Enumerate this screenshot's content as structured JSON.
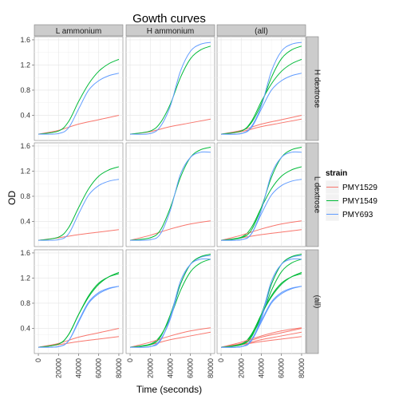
{
  "chart_data": {
    "type": "line",
    "title": "Gowth curves",
    "xlabel": "Time (seconds)",
    "ylabel": "OD",
    "xlim": [
      -4000,
      84000
    ],
    "ylim": [
      0,
      1.65
    ],
    "xticks": [
      0,
      20000,
      40000,
      60000,
      80000
    ],
    "yticks": [
      0.4,
      0.8,
      1.2,
      1.6
    ],
    "grid": true,
    "col_facets": [
      "L ammonium",
      "H ammonium",
      "(all)"
    ],
    "row_facets": [
      "H dextrose",
      "L dextrose",
      "(all)"
    ],
    "legend": {
      "title": "strain",
      "position": "right",
      "entries": [
        {
          "name": "PMY1529",
          "color": "#F8766D"
        },
        {
          "name": "PMY1549",
          "color": "#00BA38"
        },
        {
          "name": "PMY693",
          "color": "#619CFF"
        }
      ]
    },
    "facets": [
      {
        "row": "H dextrose",
        "col": "L ammonium",
        "curves": [
          {
            "strain": "PMY1529",
            "x": [
              0,
              20000,
              40000,
              60000,
              80000
            ],
            "y": [
              0.1,
              0.16,
              0.26,
              0.33,
              0.4
            ]
          },
          {
            "strain": "PMY1549",
            "x": [
              0,
              20000,
              30000,
              40000,
              50000,
              60000,
              70000,
              80000
            ],
            "y": [
              0.1,
              0.15,
              0.3,
              0.62,
              0.9,
              1.1,
              1.22,
              1.29
            ]
          },
          {
            "strain": "PMY693",
            "x": [
              0,
              20000,
              30000,
              40000,
              50000,
              60000,
              70000,
              80000
            ],
            "y": [
              0.1,
              0.11,
              0.2,
              0.5,
              0.8,
              0.95,
              1.03,
              1.07
            ]
          }
        ]
      },
      {
        "row": "H dextrose",
        "col": "H ammonium",
        "curves": [
          {
            "strain": "PMY1529",
            "x": [
              0,
              20000,
              40000,
              60000,
              80000
            ],
            "y": [
              0.1,
              0.14,
              0.22,
              0.28,
              0.34
            ]
          },
          {
            "strain": "PMY1549",
            "x": [
              0,
              20000,
              30000,
              40000,
              50000,
              60000,
              70000,
              80000
            ],
            "y": [
              0.1,
              0.15,
              0.28,
              0.58,
              1.0,
              1.3,
              1.44,
              1.5
            ]
          },
          {
            "strain": "PMY693",
            "x": [
              0,
              20000,
              30000,
              40000,
              50000,
              60000,
              70000,
              80000
            ],
            "y": [
              0.1,
              0.11,
              0.22,
              0.55,
              1.1,
              1.42,
              1.53,
              1.56
            ]
          }
        ]
      },
      {
        "row": "L dextrose",
        "col": "L ammonium",
        "curves": [
          {
            "strain": "PMY1529",
            "x": [
              0,
              20000,
              40000,
              60000,
              80000
            ],
            "y": [
              0.1,
              0.14,
              0.19,
              0.23,
              0.27
            ]
          },
          {
            "strain": "PMY1549",
            "x": [
              0,
              20000,
              30000,
              40000,
              50000,
              60000,
              70000,
              80000
            ],
            "y": [
              0.1,
              0.15,
              0.3,
              0.62,
              0.92,
              1.12,
              1.22,
              1.27
            ]
          },
          {
            "strain": "PMY693",
            "x": [
              0,
              20000,
              30000,
              40000,
              50000,
              60000,
              70000,
              80000
            ],
            "y": [
              0.1,
              0.11,
              0.2,
              0.52,
              0.82,
              0.97,
              1.04,
              1.07
            ]
          }
        ]
      },
      {
        "row": "L dextrose",
        "col": "H ammonium",
        "curves": [
          {
            "strain": "PMY1529",
            "x": [
              0,
              20000,
              40000,
              60000,
              80000
            ],
            "y": [
              0.1,
              0.18,
              0.28,
              0.36,
              0.41
            ]
          },
          {
            "strain": "PMY1549",
            "x": [
              0,
              20000,
              30000,
              40000,
              50000,
              60000,
              70000,
              80000
            ],
            "y": [
              0.1,
              0.14,
              0.26,
              0.62,
              1.1,
              1.42,
              1.54,
              1.58
            ]
          },
          {
            "strain": "PMY693",
            "x": [
              0,
              20000,
              30000,
              40000,
              50000,
              60000,
              70000,
              80000
            ],
            "y": [
              0.1,
              0.11,
              0.2,
              0.58,
              1.15,
              1.42,
              1.5,
              1.5
            ]
          }
        ]
      }
    ]
  }
}
